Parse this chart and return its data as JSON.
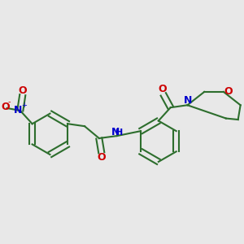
{
  "bg_color": "#e8e8e8",
  "bond_color": "#2d6e2d",
  "bond_width": 1.5,
  "atom_colors": {
    "N": "#0000cc",
    "O": "#cc0000",
    "H": "#0000cc",
    "C": "#2d6e2d"
  },
  "font_size_atoms": 9,
  "font_size_small": 7
}
